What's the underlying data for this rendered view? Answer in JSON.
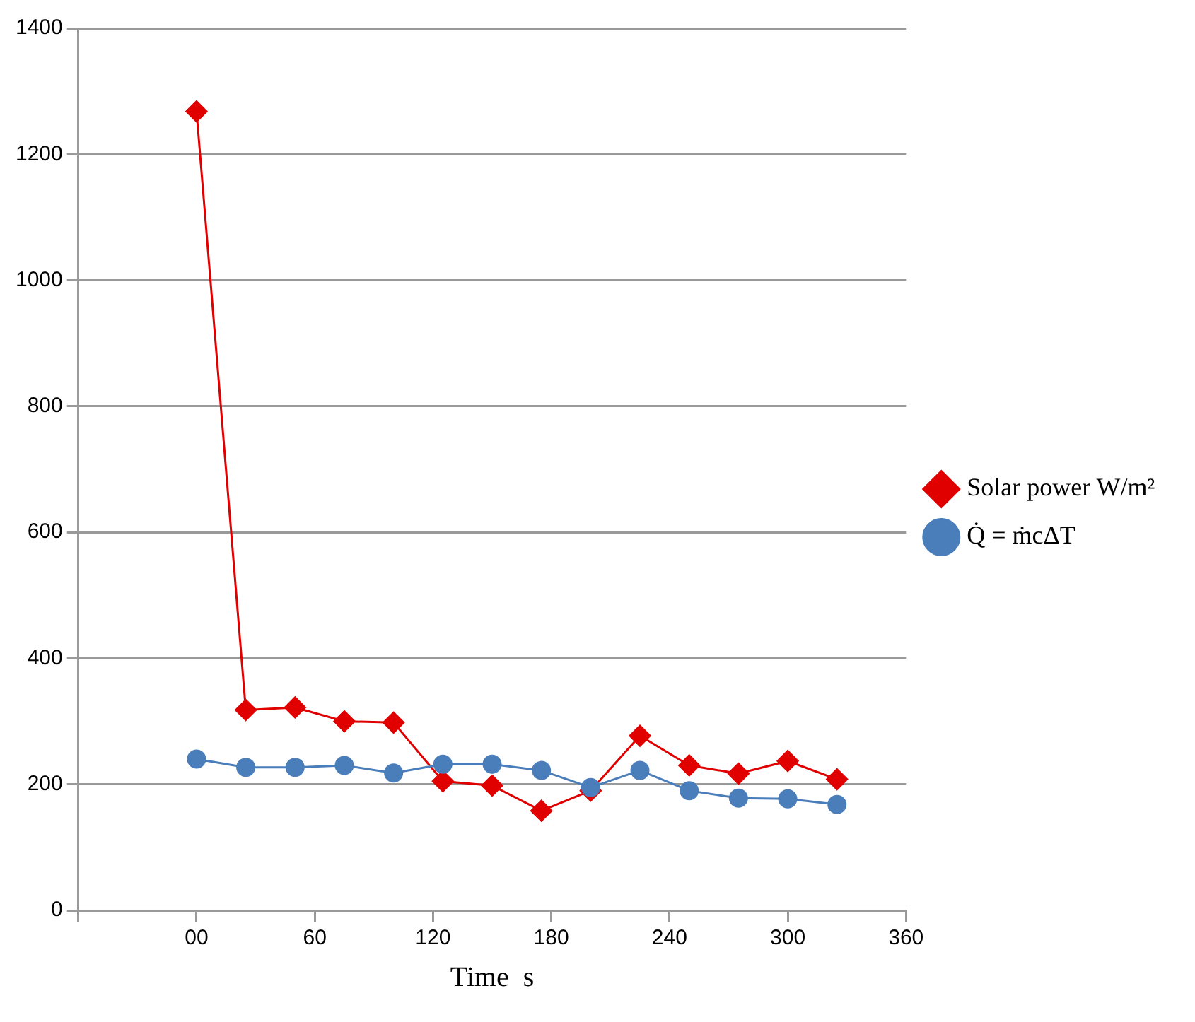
{
  "chart_data": {
    "type": "line",
    "xlabel": "Time  s",
    "x": [
      0,
      25,
      50,
      75,
      100,
      125,
      150,
      175,
      200,
      225,
      250,
      275,
      300,
      325
    ],
    "series": [
      {
        "name": "Solar power W/m²",
        "color": "#e00000",
        "marker": "diamond",
        "values": [
          1268,
          318,
          322,
          300,
          298,
          205,
          198,
          158,
          190,
          277,
          230,
          217,
          237,
          208
        ]
      },
      {
        "name": "Q̇ = ṁcΔT",
        "color": "#4a7ebb",
        "marker": "circle",
        "values": [
          240,
          227,
          227,
          230,
          218,
          232,
          232,
          222,
          195,
          222,
          190,
          178,
          177,
          168
        ]
      }
    ],
    "xlim": [
      -60,
      360
    ],
    "xticks": [
      {
        "value": -60,
        "label": null
      },
      {
        "value": 0,
        "label": "00"
      },
      60,
      120,
      180,
      240,
      300,
      360
    ],
    "ylim": [
      0,
      1400
    ],
    "yticks": [
      0,
      200,
      400,
      600,
      800,
      1000,
      1200,
      1400
    ],
    "grid": "y",
    "legend": "right",
    "line_style": "solid"
  }
}
